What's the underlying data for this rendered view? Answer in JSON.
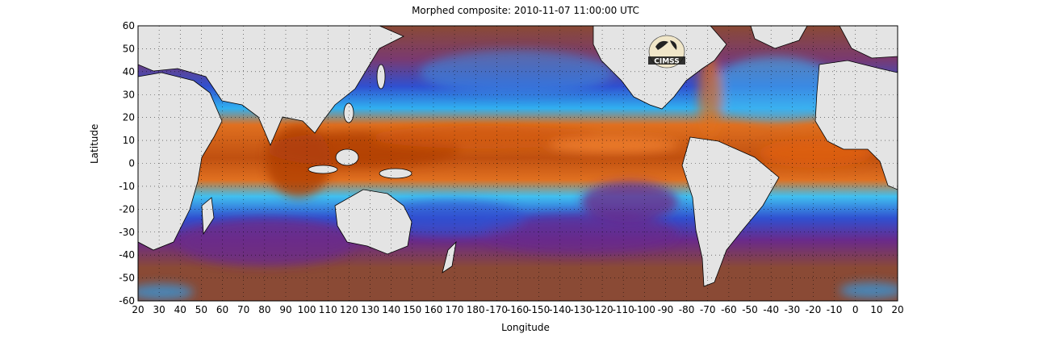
{
  "title": "Morphed composite: 2010-11-07 11:00:00 UTC",
  "xlabel": "Longitude",
  "ylabel": "Latitude",
  "lat_ticks": [
    "60",
    "50",
    "40",
    "30",
    "20",
    "10",
    "0",
    "-10",
    "-20",
    "-30",
    "-40",
    "-50",
    "-60"
  ],
  "lon_ticks": [
    "20",
    "30",
    "40",
    "50",
    "60",
    "70",
    "80",
    "90",
    "100",
    "110",
    "120",
    "130",
    "140",
    "150",
    "160",
    "170",
    "180",
    "-170",
    "-160",
    "-150",
    "-140",
    "-130",
    "-120",
    "-110",
    "-100",
    "-90",
    "-80",
    "-70",
    "-60",
    "-50",
    "-40",
    "-30",
    "-20",
    "-10",
    "0",
    "10",
    "20"
  ],
  "logo_text": "CIMSS",
  "colors": {
    "land": "#e4e4e4",
    "dry": "#8a4a35",
    "purple": "#6a2a8a",
    "blue": "#2a6ae0",
    "cyan": "#30d0f0",
    "green": "#a0e070",
    "orange": "#f07020",
    "dark_orange": "#b04008"
  }
}
